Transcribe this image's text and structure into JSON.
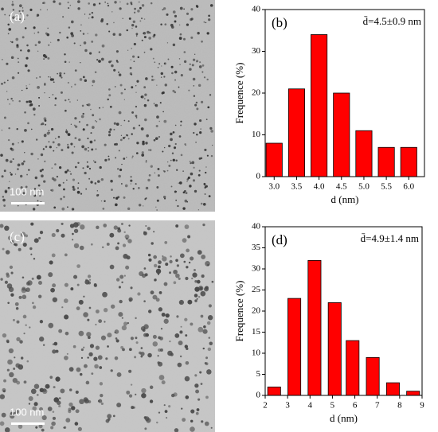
{
  "images": [
    {
      "label": "(a)",
      "scale_bar": "100 nm"
    },
    {
      "label": "(c)",
      "scale_bar": "100 nm"
    }
  ],
  "chart_data": [
    {
      "type": "bar",
      "panel_label": "(b)",
      "annotation": "d̄=4.5±0.9 nm",
      "xlabel": "d (nm)",
      "ylabel": "Frequence (%)",
      "x": [
        3.0,
        3.5,
        4.0,
        4.5,
        5.0,
        5.5,
        6.0
      ],
      "values": [
        8,
        21,
        34,
        20,
        11,
        7,
        7
      ],
      "color": "#ff0000",
      "xlim": [
        2.8,
        6.35
      ],
      "xticks": [
        {
          "value": 3,
          "label": "3.0"
        },
        {
          "value": 3.5,
          "label": "3.5"
        },
        {
          "value": 4,
          "label": "4.0"
        },
        {
          "value": 4.5,
          "label": "4.5"
        },
        {
          "value": 5,
          "label": "5.0"
        },
        {
          "value": 5.5,
          "label": "5.5"
        },
        {
          "value": 6,
          "label": "6.0"
        }
      ],
      "ylim": [
        0,
        40
      ],
      "yticks": [
        0,
        10,
        20,
        30,
        40
      ]
    },
    {
      "type": "bar",
      "panel_label": "(d)",
      "annotation": "d̄=4.9±1.4 nm",
      "xlabel": "d (nm)",
      "ylabel": "Frequence (%)",
      "x": [
        2.4,
        3.3,
        4.2,
        5.1,
        5.9,
        6.8,
        7.7,
        8.6
      ],
      "values": [
        2,
        23,
        32,
        22,
        13,
        9,
        3,
        1
      ],
      "color": "#ff0000",
      "xlim": [
        2,
        9
      ],
      "xticks": [
        2,
        3,
        4,
        5,
        6,
        7,
        8,
        9
      ],
      "ylim": [
        0,
        40
      ],
      "yticks": [
        0,
        5,
        10,
        15,
        20,
        25,
        30,
        35,
        40
      ]
    }
  ]
}
